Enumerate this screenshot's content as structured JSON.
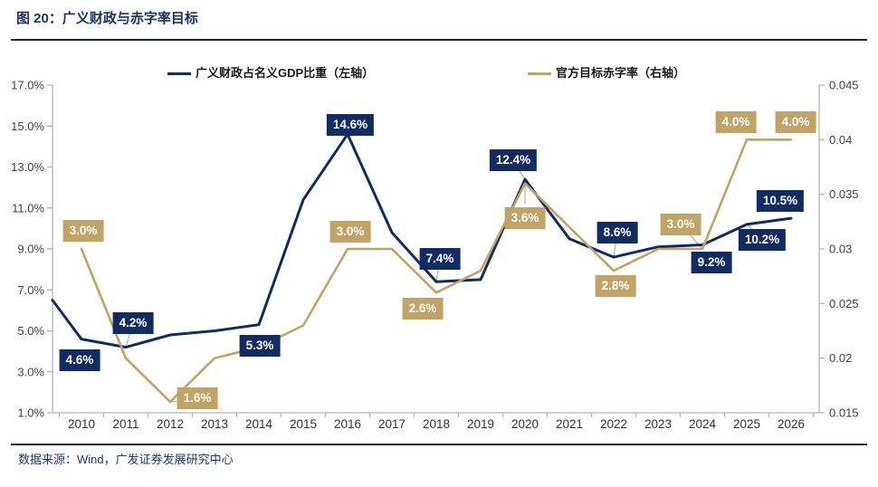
{
  "header": {
    "title": "图 20：广义财政与赤字率目标"
  },
  "legend": [
    {
      "label": "广义财政占名义GDP比重（左轴）",
      "color": "#112c63"
    },
    {
      "label": "官方目标赤字率（右轴）",
      "color": "#c2a366"
    }
  ],
  "footer": {
    "source": "数据来源：Wind，广发证券发展研究中心"
  },
  "chart_data": {
    "type": "line",
    "title": "图 20：广义财政与赤字率目标",
    "legend_position": "top",
    "grid": false,
    "categories": [
      "2010",
      "2011",
      "2012",
      "2013",
      "2014",
      "2015",
      "2016",
      "2017",
      "2018",
      "2019",
      "2020",
      "2021",
      "2022",
      "2023",
      "2024",
      "2025",
      "2026"
    ],
    "left_axis": {
      "min": 1,
      "max": 17,
      "tick_step_pct": 2,
      "ticks": [
        "17.0%",
        "15.0%",
        "13.0%",
        "11.0%",
        "9.0%",
        "7.0%",
        "5.0%",
        "3.0%",
        "1.0%"
      ]
    },
    "right_axis": {
      "min": 0.015,
      "max": 0.045,
      "tick_step": 0.005,
      "ticks": [
        "0.045",
        "0.04",
        "0.035",
        "0.03",
        "0.025",
        "0.02",
        "0.015"
      ]
    },
    "series": [
      {
        "name": "广义财政占名义GDP比重（左轴）",
        "axis": "left",
        "color": "#112c63",
        "values": [
          4.6,
          4.2,
          4.8,
          5.0,
          5.3,
          11.4,
          14.6,
          9.8,
          7.4,
          7.5,
          12.4,
          9.5,
          8.6,
          9.1,
          9.2,
          10.2,
          10.5
        ],
        "clipped_start_pct": 6.5,
        "point_labels": [
          {
            "index": 0,
            "text": "4.6%",
            "dx": -2,
            "dy": 23,
            "leader": false
          },
          {
            "index": 1,
            "text": "4.2%",
            "dx": 8,
            "dy": -27,
            "leader": true
          },
          {
            "index": 4,
            "text": "5.3%",
            "dx": 1,
            "dy": 23,
            "leader": false
          },
          {
            "index": 6,
            "text": "14.6%",
            "dx": 3,
            "dy": -10,
            "leader": false
          },
          {
            "index": 8,
            "text": "7.4%",
            "dx": 4,
            "dy": -25,
            "leader": true
          },
          {
            "index": 10,
            "text": "12.4%",
            "dx": -13,
            "dy": -21,
            "leader": true
          },
          {
            "index": 12,
            "text": "8.6%",
            "dx": 4,
            "dy": -27,
            "leader": true
          },
          {
            "index": 14,
            "text": "9.2%",
            "dx": 10,
            "dy": 20,
            "leader": false
          },
          {
            "index": 15,
            "text": "10.2%",
            "dx": 17,
            "dy": 17,
            "leader": true
          },
          {
            "index": 16,
            "text": "10.5%",
            "dx": -12,
            "dy": -19,
            "leader": false
          }
        ]
      },
      {
        "name": "官方目标赤字率（右轴）",
        "axis": "right",
        "color": "#c2a366",
        "values": [
          0.03,
          0.02,
          0.016,
          0.02,
          0.021,
          0.023,
          0.03,
          0.03,
          0.026,
          0.028,
          0.036,
          0.032,
          0.028,
          0.03,
          0.03,
          0.04,
          0.04
        ],
        "point_labels": [
          {
            "index": 0,
            "text": "3.0%",
            "dx": 2,
            "dy": -20,
            "leader": false
          },
          {
            "index": 2,
            "text": "1.6%",
            "dx": 30,
            "dy": -4,
            "leader": true
          },
          {
            "index": 6,
            "text": "3.0%",
            "dx": 3,
            "dy": -19,
            "leader": false
          },
          {
            "index": 8,
            "text": "2.6%",
            "dx": -15,
            "dy": 18,
            "leader": false
          },
          {
            "index": 10,
            "text": "3.6%",
            "dx": 0,
            "dy": 38,
            "leader": true
          },
          {
            "index": 12,
            "text": "2.8%",
            "dx": 2,
            "dy": 17,
            "leader": false
          },
          {
            "index": 14,
            "text": "3.0%",
            "dx": -24,
            "dy": -27,
            "leader": true
          },
          {
            "index": 15,
            "text": "4.0%",
            "dx": -12,
            "dy": -19,
            "leader": false
          },
          {
            "index": 16,
            "text": "4.0%",
            "dx": 5,
            "dy": -19,
            "leader": false
          }
        ]
      }
    ]
  }
}
